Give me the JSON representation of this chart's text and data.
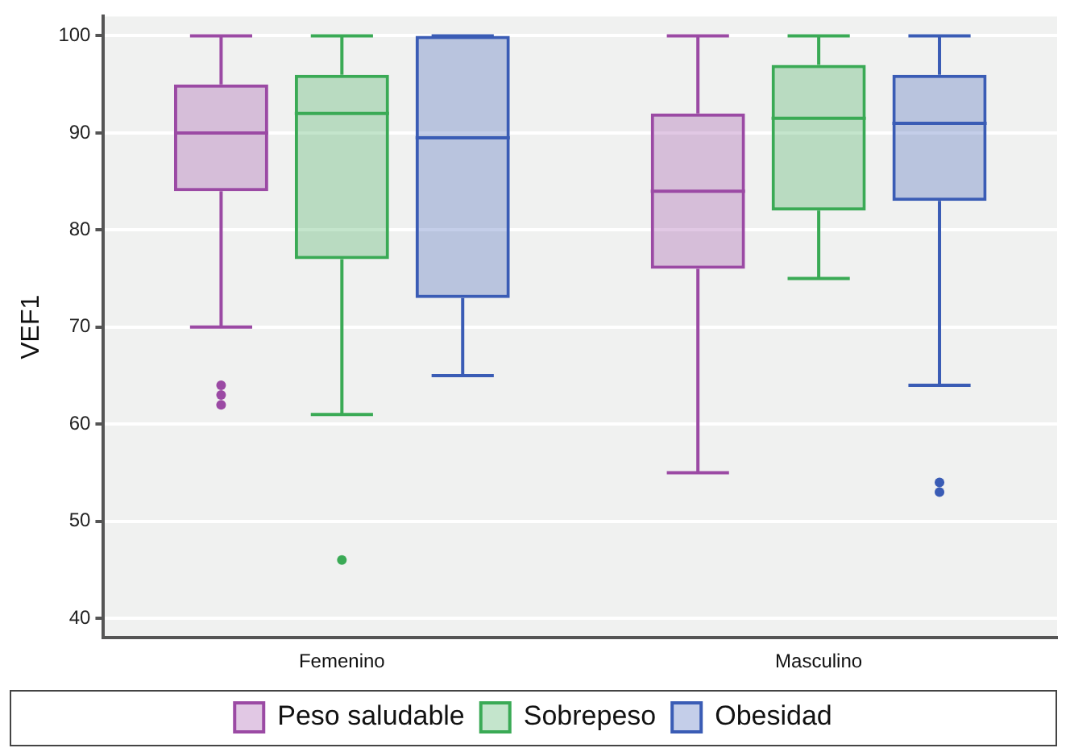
{
  "chart_data": {
    "type": "box",
    "ylabel": "VEF1",
    "categories": [
      "Femenino",
      "Masculino"
    ],
    "ylim": [
      38,
      102
    ],
    "yticks": [
      40,
      50,
      60,
      70,
      80,
      90,
      100
    ],
    "grid": "y",
    "legend": "bottom",
    "series": [
      {
        "name": "Peso saludable",
        "color": "#9b4aa4",
        "boxes": [
          {
            "low": 70,
            "q1": 84,
            "median": 90,
            "q3": 95,
            "high": 100,
            "outliers": [
              62,
              63,
              64
            ]
          },
          {
            "low": 55,
            "q1": 76,
            "median": 84,
            "q3": 92,
            "high": 100
          }
        ]
      },
      {
        "name": "Sobrepeso",
        "color": "#3aaa55",
        "boxes": [
          {
            "low": 61,
            "q1": 77,
            "median": 92,
            "q3": 96,
            "high": 100,
            "outliers": [
              46
            ]
          },
          {
            "low": 75,
            "q1": 82,
            "median": 91.5,
            "q3": 97,
            "high": 100
          }
        ]
      },
      {
        "name": "Obesidad",
        "color": "#3a5cb5",
        "boxes": [
          {
            "low": 65,
            "q1": 73,
            "median": 89.5,
            "q3": 100,
            "high": 100
          },
          {
            "low": 64,
            "q1": 83,
            "median": 91,
            "q3": 96,
            "high": 100,
            "outliers": [
              53,
              54
            ]
          }
        ]
      }
    ]
  }
}
